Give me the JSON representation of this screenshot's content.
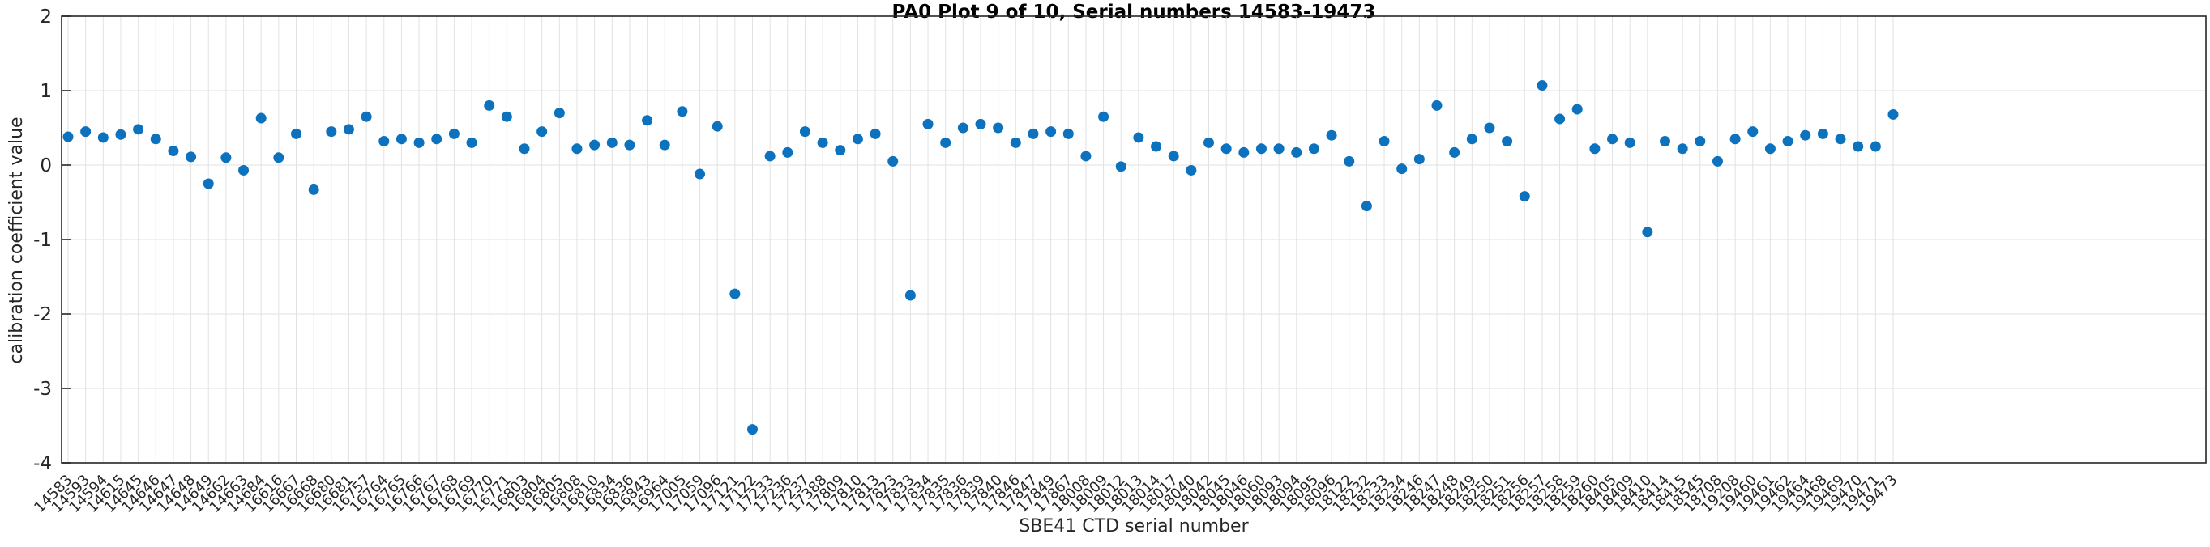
{
  "chart_data": {
    "type": "scatter",
    "title": "PA0 Plot 9 of 10, Serial numbers 14583-19473",
    "xlabel": "SBE41 CTD serial number",
    "ylabel": "calibration coefficient value",
    "ylim": [
      -4,
      2
    ],
    "yticks": [
      2,
      1,
      0,
      -1,
      -2,
      -3,
      -4
    ],
    "grid": true,
    "legend": "none",
    "marker_color": "#0d72bd",
    "axis_color": "#262626",
    "grid_color": "#e2e2e2",
    "categories": [
      "14583",
      "14593",
      "14594",
      "14615",
      "14645",
      "14646",
      "14647",
      "14648",
      "14649",
      "14662",
      "14663",
      "14684",
      "16616",
      "16667",
      "16668",
      "16680",
      "16681",
      "16757",
      "16764",
      "16765",
      "16766",
      "16767",
      "16768",
      "16769",
      "16770",
      "16771",
      "16803",
      "16804",
      "16805",
      "16808",
      "16810",
      "16834",
      "16836",
      "16843",
      "16964",
      "17005",
      "17059",
      "17096",
      "17121",
      "17122",
      "17233",
      "17236",
      "17237",
      "17388",
      "17809",
      "17810",
      "17813",
      "17823",
      "17833",
      "17834",
      "17835",
      "17836",
      "17839",
      "17840",
      "17846",
      "17847",
      "17849",
      "17867",
      "18008",
      "18009",
      "18012",
      "18013",
      "18014",
      "18017",
      "18040",
      "18042",
      "18045",
      "18046",
      "18060",
      "18093",
      "18094",
      "18095",
      "18096",
      "18122",
      "18232",
      "18233",
      "18234",
      "18246",
      "18247",
      "18248",
      "18249",
      "18250",
      "18251",
      "18256",
      "18257",
      "18258",
      "18259",
      "18260",
      "18405",
      "18409",
      "18410",
      "18414",
      "18415",
      "18545",
      "18708",
      "19208",
      "19460",
      "19461",
      "19462",
      "19464",
      "19468",
      "19469",
      "19470",
      "19471",
      "19473"
    ],
    "values": [
      0.38,
      0.45,
      0.37,
      0.41,
      0.48,
      0.35,
      0.19,
      0.11,
      -0.25,
      0.1,
      -0.07,
      0.63,
      0.1,
      0.42,
      -0.33,
      0.45,
      0.48,
      0.65,
      0.32,
      0.35,
      0.3,
      0.35,
      0.42,
      0.3,
      0.8,
      0.65,
      0.22,
      0.45,
      0.7,
      0.22,
      0.27,
      0.3,
      0.27,
      0.6,
      0.27,
      0.72,
      -0.12,
      0.52,
      -1.73,
      -3.55,
      0.12,
      0.17,
      0.45,
      0.3,
      0.2,
      0.35,
      0.42,
      0.05,
      -1.75,
      0.55,
      0.3,
      0.5,
      0.55,
      0.5,
      0.3,
      0.42,
      0.45,
      0.42,
      0.12,
      0.65,
      -0.02,
      0.37,
      0.25,
      0.12,
      -0.07,
      0.3,
      0.22,
      0.17,
      0.22,
      0.22,
      0.17,
      0.22,
      0.4,
      0.05,
      -0.55,
      0.32,
      -0.05,
      0.08,
      0.8,
      0.17,
      0.35,
      0.5,
      0.32,
      -0.42,
      1.07,
      0.62,
      0.75,
      0.22,
      0.35,
      0.3,
      -0.9,
      0.32,
      0.22,
      0.32,
      0.05,
      0.35,
      0.45,
      0.22,
      0.32,
      0.4,
      0.42,
      0.35,
      0.25,
      0.25,
      0.68
    ]
  }
}
